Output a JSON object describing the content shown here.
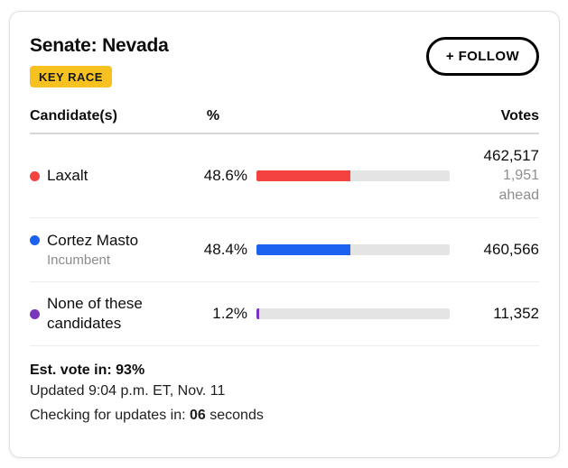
{
  "card": {
    "title": "Senate: Nevada",
    "badge": "KEY RACE",
    "follow_button": "+ FOLLOW"
  },
  "table": {
    "headers": {
      "candidate": "Candidate(s)",
      "percent": "%",
      "votes": "Votes"
    }
  },
  "rows": [
    {
      "name": "Laxalt",
      "percent_label": "48.6%",
      "percent_value": 48.6,
      "votes": "462,517",
      "margin": "1,951",
      "margin_label": "ahead",
      "color": "#f4423e"
    },
    {
      "name": "Cortez Masto",
      "subtitle": "Incumbent",
      "percent_label": "48.4%",
      "percent_value": 48.4,
      "votes": "460,566",
      "color": "#1a62ef"
    },
    {
      "name": "None of these candidates",
      "percent_label": "1.2%",
      "percent_value": 1.2,
      "votes": "11,352",
      "color": "#7a35bf"
    }
  ],
  "footer": {
    "est_vote_label": "Est. vote in:",
    "est_vote_value": "93%",
    "updated": "Updated 9:04 p.m. ET, Nov. 11",
    "checking_prefix": "Checking for updates in:",
    "countdown": "06",
    "checking_suffix": "seconds"
  },
  "colors": {
    "badge_bg": "#f7c120",
    "bar_track": "#e4e4e4",
    "laxalt_red": "#f4423e",
    "cortez_blue": "#1a62ef",
    "none_purple": "#7a35bf"
  }
}
